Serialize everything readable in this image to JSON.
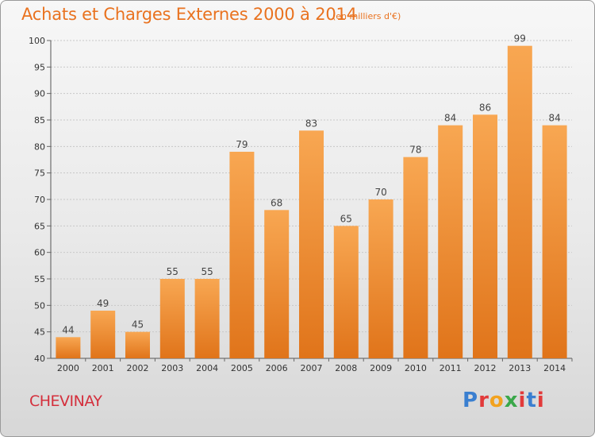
{
  "header": {
    "title": "Achats et Charges Externes 2000 à 2014",
    "subtitle": "(en milliers d'€)"
  },
  "footer": {
    "commune": "CHEVINAY",
    "logo_text": "Proxiti",
    "logo_colors": [
      "#3a7fd0",
      "#e23a3a",
      "#f2a21e",
      "#3aa84a",
      "#e23a3a",
      "#3a7fd0",
      "#e23a3a"
    ]
  },
  "colors": {
    "bar_light": "#f8a752",
    "bar_dark": "#e0741a",
    "title": "#e9721f",
    "commune": "#d42f3c"
  },
  "chart_data": {
    "type": "bar",
    "categories": [
      "2000",
      "2001",
      "2002",
      "2003",
      "2004",
      "2005",
      "2006",
      "2007",
      "2008",
      "2009",
      "2010",
      "2011",
      "2012",
      "2013",
      "2014"
    ],
    "values": [
      44,
      49,
      45,
      55,
      55,
      79,
      68,
      83,
      65,
      70,
      78,
      84,
      86,
      99,
      84
    ],
    "ylim": [
      40,
      100
    ],
    "yticks": [
      40,
      45,
      50,
      55,
      60,
      65,
      70,
      75,
      80,
      85,
      90,
      95,
      100
    ],
    "grid": true,
    "data_labels": true
  }
}
